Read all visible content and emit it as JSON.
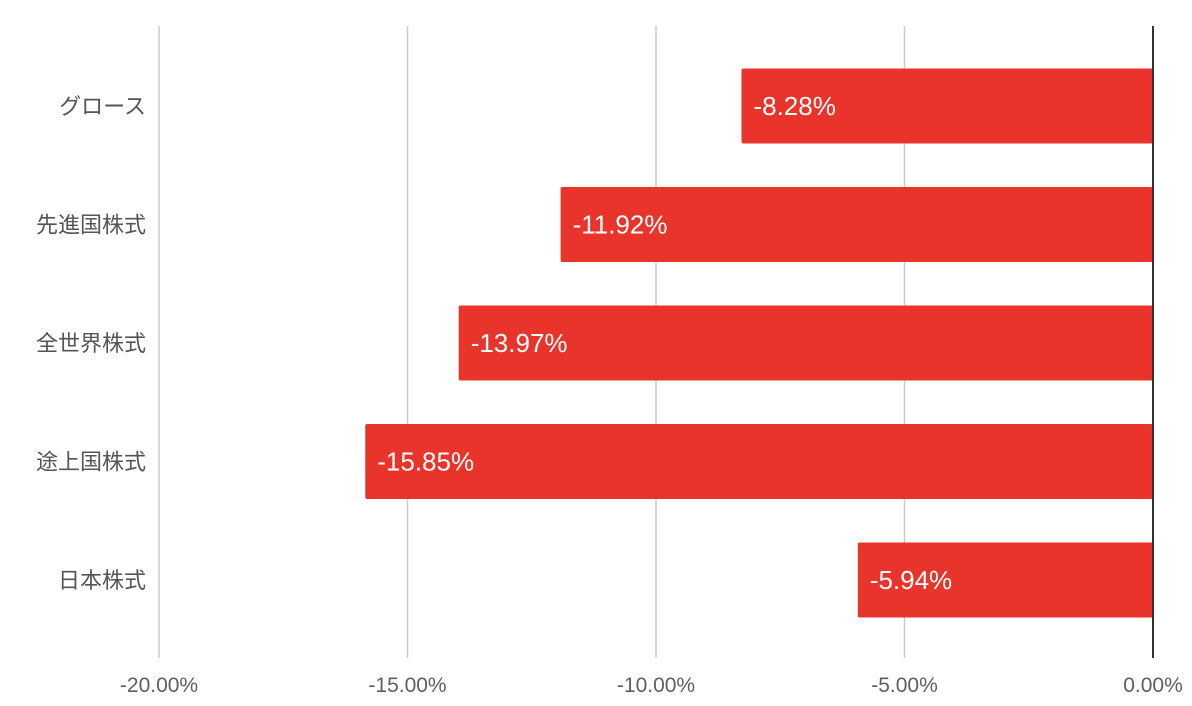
{
  "chart_data": {
    "type": "bar",
    "orientation": "horizontal",
    "categories": [
      "グロース",
      "先進国株式",
      "全世界株式",
      "途上国株式",
      "日本株式"
    ],
    "values": [
      -8.28,
      -11.92,
      -13.97,
      -15.85,
      -5.94
    ],
    "data_labels": [
      "-8.28%",
      "-11.92%",
      "-13.97%",
      "-15.85%",
      "-5.94%"
    ],
    "x_ticks": [
      -20,
      -15,
      -10,
      -5,
      0
    ],
    "x_tick_labels": [
      "-20.00%",
      "-15.00%",
      "-10.00%",
      "-5.00%",
      "0.00%"
    ],
    "xlim": [
      -20,
      0
    ],
    "title": "",
    "xlabel": "",
    "ylabel": "",
    "grid": true,
    "legend": "none",
    "bar_color": "#e8342a",
    "grid_color": "#cccccc",
    "zero_line_color": "#333333"
  }
}
